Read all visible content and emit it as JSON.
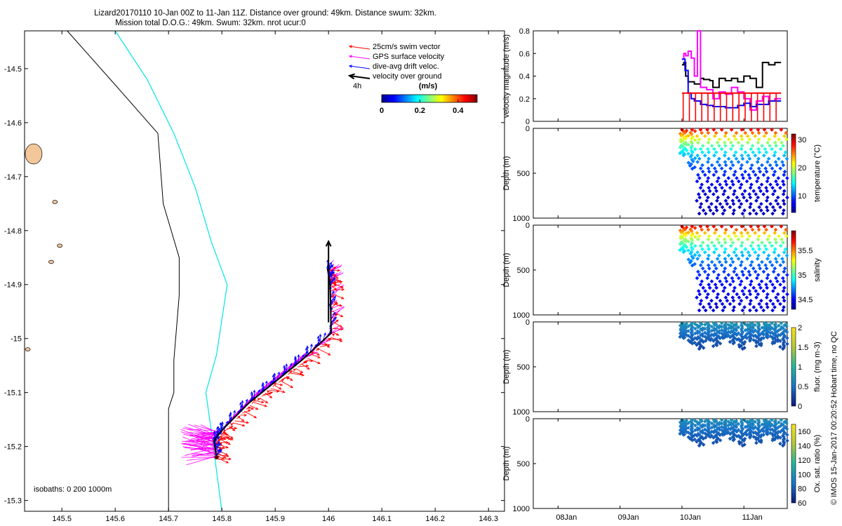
{
  "header": {
    "line1": "Lizard20170110 10-Jan 00Z to 11-Jan 11Z. Distance over ground: 49km. Distance swum: 32km.",
    "line2": "Mission total D.O.G.: 49km. Swum: 32km. nrot ucur:0"
  },
  "side_note": "© IMOS 15-Jan-2017 00:20:52 Hobart time, no QC",
  "colors": {
    "swim_vector": "#ff0000",
    "gps_velocity": "#ff00ff",
    "drift_velocity": "#0000ff",
    "velocity_over_ground": "#000000",
    "isobath_200": "#000000",
    "isobath_1000": "#00e5e5",
    "land": "#f4c79a"
  },
  "chart_data": [
    {
      "type": "scatter",
      "panel": "map",
      "xlim": [
        145.43,
        146.33
      ],
      "ylim": [
        -15.32,
        -14.43
      ],
      "x_ticks": [
        "145.5",
        "145.6",
        "145.7",
        "145.8",
        "145.9",
        "146",
        "146.1",
        "146.2",
        "146.3"
      ],
      "y_ticks": [
        "-14.5",
        "-14.6",
        "-14.7",
        "-14.8",
        "-14.9",
        "-15",
        "-15.1",
        "-15.2",
        "-15.3"
      ],
      "legend": [
        {
          "label": "25cm/s swim vector",
          "color": "#ff0000"
        },
        {
          "label": "GPS surface velocity",
          "color": "#ff00ff"
        },
        {
          "label": "dive-avg drift veloc.",
          "color": "#0000ff"
        },
        {
          "label": "velocity over ground",
          "color": "#000000"
        }
      ],
      "scale_label": "4h",
      "colorbar": {
        "label": "(m/s)",
        "ticks": [
          "0",
          "0.2",
          "0.4"
        ],
        "range": [
          0,
          0.5
        ]
      },
      "isobaths_label": "isobaths: 0   200  1000m",
      "isobath_200": [
        [
          145.51,
          -14.43
        ],
        [
          145.6,
          -14.53
        ],
        [
          145.68,
          -14.62
        ],
        [
          145.69,
          -14.75
        ],
        [
          145.72,
          -14.85
        ],
        [
          145.72,
          -14.92
        ],
        [
          145.71,
          -15.04
        ],
        [
          145.71,
          -15.1
        ],
        [
          145.7,
          -15.13
        ],
        [
          145.7,
          -15.32
        ]
      ],
      "isobath_1000": [
        [
          145.6,
          -14.43
        ],
        [
          145.66,
          -14.52
        ],
        [
          145.71,
          -14.62
        ],
        [
          145.75,
          -14.72
        ],
        [
          145.78,
          -14.82
        ],
        [
          145.81,
          -14.9
        ],
        [
          145.79,
          -15.03
        ],
        [
          145.77,
          -15.1
        ],
        [
          145.78,
          -15.17
        ],
        [
          145.8,
          -15.32
        ]
      ],
      "islands": [
        {
          "lon": 145.447,
          "lat": -14.658
        },
        {
          "lon": 145.487,
          "lat": -14.747
        },
        {
          "lon": 145.496,
          "lat": -14.828
        },
        {
          "lon": 145.48,
          "lat": -14.858
        },
        {
          "lon": 145.436,
          "lat": -15.02
        }
      ],
      "track": [
        [
          145.79,
          -15.22
        ],
        [
          145.785,
          -15.19
        ],
        [
          145.8,
          -15.17
        ],
        [
          145.85,
          -15.12
        ],
        [
          145.9,
          -15.08
        ],
        [
          145.95,
          -15.04
        ],
        [
          146.005,
          -14.99
        ],
        [
          146.003,
          -14.9
        ],
        [
          145.998,
          -14.87
        ]
      ],
      "velocity_over_ground_arrow": {
        "from": [
          146.0,
          -14.97
        ],
        "to": [
          146.0,
          -14.82
        ]
      }
    },
    {
      "type": "line",
      "panel": "velocity",
      "ylabel": "velocity magnitude (m/s)",
      "ylim": [
        0,
        0.8
      ],
      "yticks": [
        "0",
        "0.2",
        "0.4",
        "0.6",
        "0.8"
      ],
      "x_range_days": [
        7.6,
        11.7
      ],
      "series": [
        {
          "color": "#000000",
          "x": [
            10.0,
            10.03,
            10.06,
            10.1,
            10.2,
            10.3,
            10.35,
            10.45,
            10.5,
            10.6,
            10.7,
            10.8,
            10.9,
            11.0,
            11.1,
            11.2,
            11.3,
            11.4,
            11.5,
            11.6
          ],
          "y": [
            0.5,
            0.52,
            0.4,
            0.35,
            0.33,
            0.38,
            0.37,
            0.36,
            0.3,
            0.38,
            0.36,
            0.38,
            0.35,
            0.4,
            0.38,
            0.3,
            0.52,
            0.5,
            0.52,
            0.52
          ]
        },
        {
          "color": "#ff00ff",
          "x": [
            10.0,
            10.03,
            10.06,
            10.1,
            10.15,
            10.2,
            10.25,
            10.3,
            10.4,
            10.5,
            10.6,
            10.7,
            10.8,
            10.9,
            11.0,
            11.1,
            11.2,
            11.3,
            11.4,
            11.5,
            11.6
          ],
          "y": [
            0.55,
            0.6,
            0.58,
            0.62,
            0.56,
            0.4,
            0.8,
            0.3,
            0.28,
            0.2,
            0.26,
            0.24,
            0.3,
            0.26,
            0.2,
            0.1,
            0.18,
            0.22,
            0.18,
            0.2,
            0.2
          ]
        },
        {
          "color": "#0000ff",
          "x": [
            10.0,
            10.05,
            10.1,
            10.15,
            10.2,
            10.3,
            10.4,
            10.5,
            10.7,
            10.9,
            11.0,
            11.1,
            11.2,
            11.4,
            11.6
          ],
          "y": [
            0.55,
            0.45,
            0.25,
            0.2,
            0.18,
            0.15,
            0.14,
            0.13,
            0.12,
            0.14,
            0.16,
            0.13,
            0.15,
            0.18,
            0.18
          ]
        },
        {
          "color": "#ff0000",
          "x": [
            10.0,
            11.6
          ],
          "y": [
            0.25,
            0.25
          ]
        }
      ]
    },
    {
      "type": "scatter",
      "panel": "temperature",
      "ylabel": "Depth (m)",
      "ylim": [
        1000,
        0
      ],
      "yticks": [
        "0",
        "500",
        "1000"
      ],
      "colorbar": {
        "label": "temperature (°C)",
        "range": [
          4,
          32
        ],
        "ticks": [
          "10",
          "20",
          "30"
        ]
      },
      "profiles_start_day": 10.0,
      "profiles_end_day": 11.62,
      "profile_count": 13,
      "max_depth": 950,
      "surface_value": 30,
      "deep_value": 5
    },
    {
      "type": "scatter",
      "panel": "salinity",
      "ylabel": "Depth (m)",
      "ylim": [
        1000,
        0
      ],
      "yticks": [
        "0",
        "500",
        "1000"
      ],
      "colorbar": {
        "label": "salinity",
        "range": [
          34.3,
          35.9
        ],
        "ticks": [
          "34.5",
          "35",
          "35.5"
        ]
      },
      "profiles_start_day": 10.0,
      "profiles_end_day": 11.62,
      "profile_count": 13,
      "max_depth": 950,
      "surface_value": 35.8,
      "deep_value": 34.4
    },
    {
      "type": "scatter",
      "panel": "fluorescence",
      "ylabel": "Depth (m)",
      "ylim": [
        1000,
        0
      ],
      "yticks": [
        "0",
        "500",
        "1000"
      ],
      "colorbar": {
        "label": "fluor. (mg m-3)",
        "range": [
          0,
          2
        ],
        "ticks": [
          "0",
          "0.5",
          "1",
          "1.5",
          "2"
        ]
      },
      "profiles_start_day": 10.0,
      "profiles_end_day": 11.62,
      "profile_count": 13,
      "max_depth": 300,
      "surface_value": 0.8,
      "deep_value": 0
    },
    {
      "type": "scatter",
      "panel": "oxygen",
      "ylabel": "Depth (m)",
      "ylim": [
        1000,
        0
      ],
      "yticks": [
        "0",
        "500",
        "1000"
      ],
      "colorbar": {
        "label": "Ox. sat. ratio (%)",
        "range": [
          60,
          170
        ],
        "ticks": [
          "60",
          "80",
          "100",
          "120",
          "140",
          "160"
        ]
      },
      "profiles_start_day": 10.0,
      "profiles_end_day": 11.62,
      "profile_count": 13,
      "max_depth": 300,
      "surface_value": 100,
      "deep_value": 65,
      "x_ticks": [
        "08Jan",
        "09Jan",
        "10Jan",
        "11Jan"
      ]
    }
  ]
}
